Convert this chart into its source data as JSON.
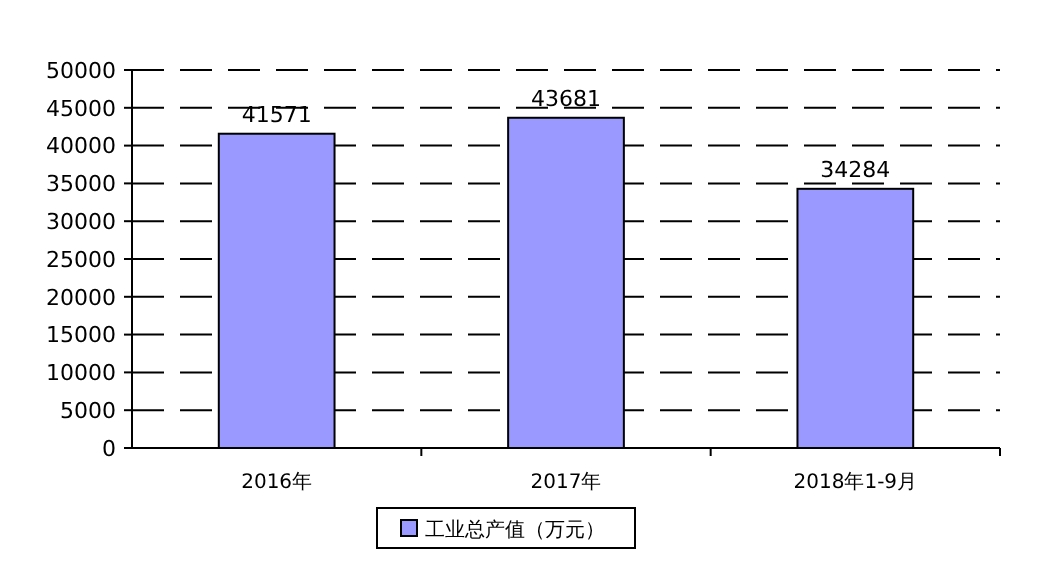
{
  "chart_data": {
    "type": "bar",
    "categories": [
      "2016年",
      "2017年",
      "2018年1-9月"
    ],
    "series": [
      {
        "name": "工业总产值（万元）",
        "color": "#9999ff",
        "values": [
          41571,
          43681,
          34284
        ]
      }
    ],
    "ylim": [
      0,
      50000
    ],
    "yticks": [
      0,
      5000,
      10000,
      15000,
      20000,
      25000,
      30000,
      35000,
      40000,
      45000,
      50000
    ],
    "grid": "y",
    "legend": "bottom",
    "data_labels": true
  }
}
